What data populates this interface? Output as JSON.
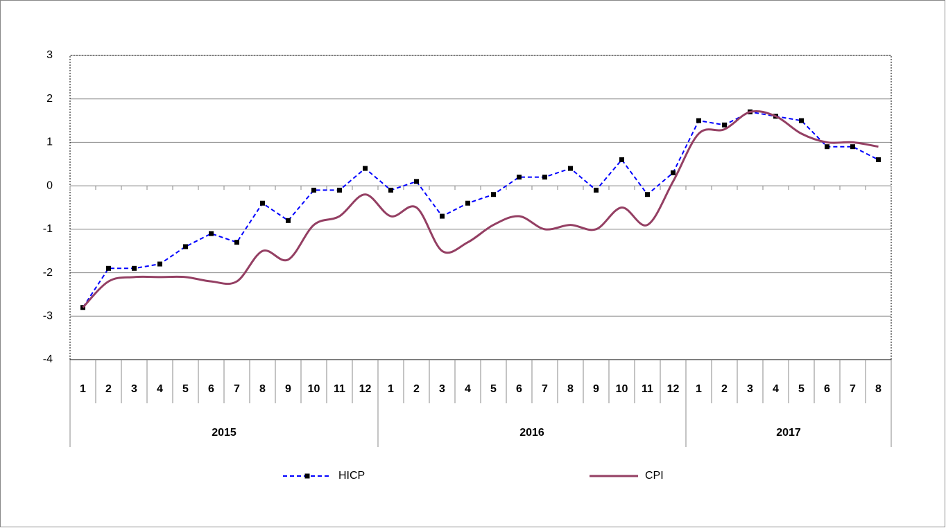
{
  "chart_data": {
    "type": "line",
    "categories": [
      "1",
      "2",
      "3",
      "4",
      "5",
      "6",
      "7",
      "8",
      "9",
      "10",
      "11",
      "12",
      "1",
      "2",
      "3",
      "4",
      "5",
      "6",
      "7",
      "8",
      "9",
      "10",
      "11",
      "12",
      "1",
      "2",
      "3",
      "4",
      "5",
      "6",
      "7",
      "8"
    ],
    "category_groups": [
      "2015",
      "2016",
      "2017"
    ],
    "series": [
      {
        "name": "HICP",
        "color": "#0000ff",
        "style": "dashed",
        "marker": "square",
        "values": [
          -2.8,
          -1.9,
          -1.9,
          -1.8,
          -1.4,
          -1.1,
          -1.3,
          -0.4,
          -0.8,
          -0.1,
          -0.1,
          0.4,
          -0.1,
          0.1,
          -0.7,
          -0.4,
          -0.2,
          0.2,
          0.2,
          0.4,
          -0.1,
          0.6,
          -0.2,
          0.3,
          1.5,
          1.4,
          1.7,
          1.6,
          1.5,
          0.9,
          0.9,
          0.6
        ]
      },
      {
        "name": "CPI",
        "color": "#943f63",
        "style": "smooth",
        "values": [
          -2.8,
          -2.2,
          -2.1,
          -2.1,
          -2.1,
          -2.2,
          -2.2,
          -1.5,
          -1.7,
          -0.9,
          -0.7,
          -0.2,
          -0.7,
          -0.5,
          -1.5,
          -1.3,
          -0.9,
          -0.7,
          -1.0,
          -0.9,
          -1.0,
          -0.5,
          -0.9,
          0.1,
          1.2,
          1.3,
          1.7,
          1.6,
          1.2,
          1.0,
          1.0,
          0.9
        ]
      }
    ],
    "ylim": [
      -4,
      3
    ],
    "yticks": [
      -4,
      -3,
      -2,
      -1,
      0,
      1,
      2,
      3
    ],
    "grid": true,
    "legend": "bottom"
  }
}
